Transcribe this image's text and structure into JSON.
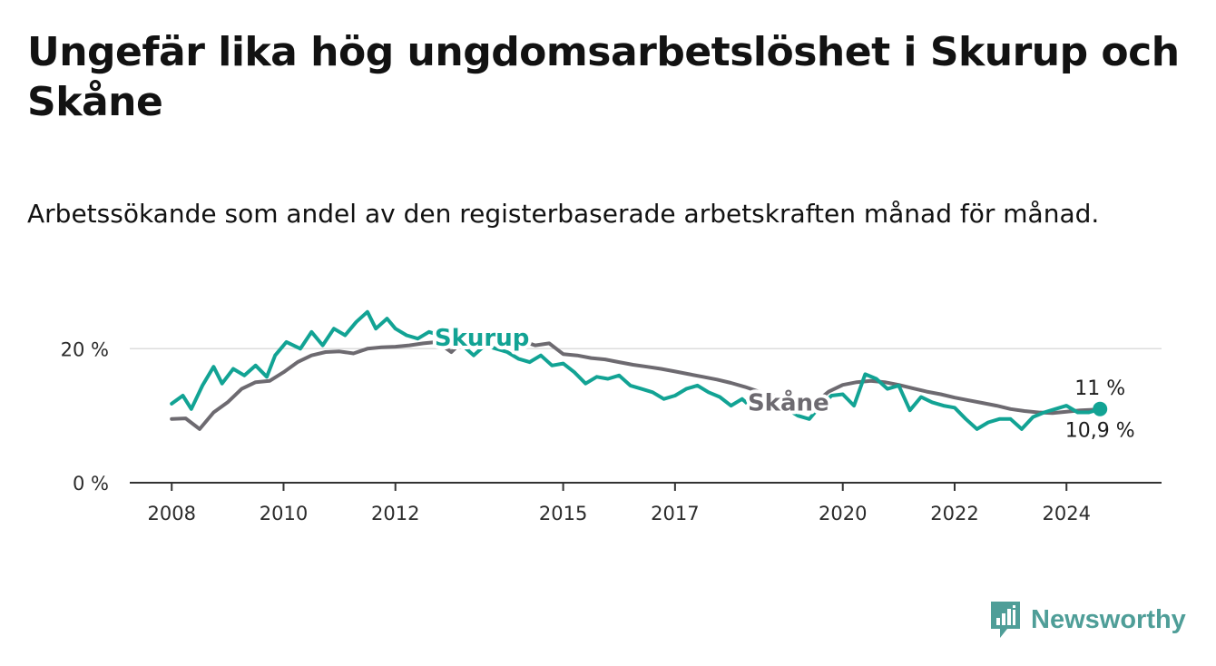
{
  "title": "Ungefär lika hög ungdomsarbetslöshet i Skurup och Skåne",
  "subtitle": "Arbetssökande som andel av den registerbaserade arbetskraften månad för månad.",
  "brand": {
    "name": "Newsworthy",
    "icon": "newsworthy-logo-icon",
    "color": "#4f9e98"
  },
  "chart_data": {
    "type": "line",
    "title": "Ungefär lika hög ungdomsarbetslöshet i Skurup och Skåne",
    "xlabel": "",
    "ylabel": "",
    "xlim": [
      2007.25,
      2025.7
    ],
    "ylim": [
      0,
      26
    ],
    "y_ticks": [
      {
        "value": 0,
        "label": "0 %"
      },
      {
        "value": 20,
        "label": "20 %"
      }
    ],
    "x_ticks": [
      {
        "value": 2008,
        "label": "2008"
      },
      {
        "value": 2010,
        "label": "2010"
      },
      {
        "value": 2012,
        "label": "2012"
      },
      {
        "value": 2015,
        "label": "2015"
      },
      {
        "value": 2017,
        "label": "2017"
      },
      {
        "value": 2020,
        "label": "2020"
      },
      {
        "value": 2022,
        "label": "2022"
      },
      {
        "value": 2024,
        "label": "2024"
      }
    ],
    "grid": "horizontal",
    "series": [
      {
        "name": "Skåne",
        "color": "#6d6a70",
        "label_at": [
          2018.3,
          12.0
        ],
        "end_label": "10,9 %",
        "points": [
          [
            2008.0,
            9.5
          ],
          [
            2008.25,
            9.6
          ],
          [
            2008.5,
            8.0
          ],
          [
            2008.75,
            10.5
          ],
          [
            2009.0,
            12.0
          ],
          [
            2009.25,
            14.0
          ],
          [
            2009.5,
            15.0
          ],
          [
            2009.75,
            15.2
          ],
          [
            2010.0,
            16.5
          ],
          [
            2010.25,
            18.0
          ],
          [
            2010.5,
            19.0
          ],
          [
            2010.75,
            19.5
          ],
          [
            2011.0,
            19.6
          ],
          [
            2011.25,
            19.3
          ],
          [
            2011.5,
            20.0
          ],
          [
            2011.75,
            20.2
          ],
          [
            2012.0,
            20.3
          ],
          [
            2012.25,
            20.5
          ],
          [
            2012.5,
            20.8
          ],
          [
            2012.75,
            21.0
          ],
          [
            2013.0,
            19.5
          ],
          [
            2013.25,
            21.5
          ],
          [
            2013.5,
            22.0
          ],
          [
            2013.75,
            21.8
          ],
          [
            2014.0,
            21.5
          ],
          [
            2014.25,
            21.2
          ],
          [
            2014.5,
            20.5
          ],
          [
            2014.75,
            20.8
          ],
          [
            2015.0,
            19.2
          ],
          [
            2015.25,
            19.0
          ],
          [
            2015.5,
            18.6
          ],
          [
            2015.75,
            18.4
          ],
          [
            2016.0,
            18.0
          ],
          [
            2016.25,
            17.6
          ],
          [
            2016.5,
            17.3
          ],
          [
            2016.75,
            17.0
          ],
          [
            2017.0,
            16.6
          ],
          [
            2017.25,
            16.2
          ],
          [
            2017.5,
            15.8
          ],
          [
            2017.75,
            15.4
          ],
          [
            2018.0,
            14.9
          ],
          [
            2018.25,
            14.3
          ],
          [
            2018.5,
            13.6
          ],
          [
            2018.75,
            13.0
          ],
          [
            2019.0,
            12.4
          ],
          [
            2019.25,
            11.9
          ],
          [
            2019.5,
            11.9
          ],
          [
            2019.75,
            13.6
          ],
          [
            2020.0,
            14.6
          ],
          [
            2020.25,
            15.0
          ],
          [
            2020.5,
            15.2
          ],
          [
            2020.75,
            15.0
          ],
          [
            2021.0,
            14.6
          ],
          [
            2021.25,
            14.1
          ],
          [
            2021.5,
            13.6
          ],
          [
            2021.75,
            13.2
          ],
          [
            2022.0,
            12.7
          ],
          [
            2022.25,
            12.3
          ],
          [
            2022.5,
            11.9
          ],
          [
            2022.75,
            11.5
          ],
          [
            2023.0,
            11.0
          ],
          [
            2023.25,
            10.7
          ],
          [
            2023.5,
            10.5
          ],
          [
            2023.75,
            10.4
          ],
          [
            2024.0,
            10.6
          ],
          [
            2024.25,
            10.8
          ],
          [
            2024.5,
            10.9
          ]
        ]
      },
      {
        "name": "Skurup",
        "color": "#12a394",
        "label_at": [
          2012.7,
          21.7
        ],
        "end_label": "11 %",
        "points": [
          [
            2008.0,
            11.8
          ],
          [
            2008.2,
            13.0
          ],
          [
            2008.35,
            11.0
          ],
          [
            2008.55,
            14.5
          ],
          [
            2008.75,
            17.3
          ],
          [
            2008.9,
            14.8
          ],
          [
            2009.1,
            17.0
          ],
          [
            2009.3,
            16.0
          ],
          [
            2009.5,
            17.5
          ],
          [
            2009.7,
            15.8
          ],
          [
            2009.85,
            19.0
          ],
          [
            2010.05,
            21.0
          ],
          [
            2010.3,
            20.0
          ],
          [
            2010.5,
            22.5
          ],
          [
            2010.7,
            20.5
          ],
          [
            2010.9,
            23.0
          ],
          [
            2011.1,
            22.0
          ],
          [
            2011.3,
            24.0
          ],
          [
            2011.5,
            25.5
          ],
          [
            2011.65,
            23.0
          ],
          [
            2011.85,
            24.5
          ],
          [
            2012.0,
            23.0
          ],
          [
            2012.2,
            22.0
          ],
          [
            2012.4,
            21.5
          ],
          [
            2012.6,
            22.5
          ],
          [
            2012.8,
            22.0
          ],
          [
            2013.0,
            21.0
          ],
          [
            2013.2,
            20.5
          ],
          [
            2013.4,
            19.0
          ],
          [
            2013.6,
            20.5
          ],
          [
            2013.8,
            20.0
          ],
          [
            2014.0,
            19.5
          ],
          [
            2014.2,
            18.5
          ],
          [
            2014.4,
            18.0
          ],
          [
            2014.6,
            19.0
          ],
          [
            2014.8,
            17.5
          ],
          [
            2015.0,
            17.8
          ],
          [
            2015.2,
            16.5
          ],
          [
            2015.4,
            14.8
          ],
          [
            2015.6,
            15.8
          ],
          [
            2015.8,
            15.5
          ],
          [
            2016.0,
            16.0
          ],
          [
            2016.2,
            14.5
          ],
          [
            2016.4,
            14.0
          ],
          [
            2016.6,
            13.5
          ],
          [
            2016.8,
            12.5
          ],
          [
            2017.0,
            13.0
          ],
          [
            2017.2,
            14.0
          ],
          [
            2017.4,
            14.5
          ],
          [
            2017.6,
            13.5
          ],
          [
            2017.8,
            12.8
          ],
          [
            2018.0,
            11.5
          ],
          [
            2018.2,
            12.5
          ],
          [
            2018.4,
            11.0
          ],
          [
            2018.6,
            12.0
          ],
          [
            2018.8,
            11.5
          ],
          [
            2019.0,
            11.0
          ],
          [
            2019.2,
            10.0
          ],
          [
            2019.4,
            9.5
          ],
          [
            2019.6,
            11.5
          ],
          [
            2019.8,
            13.0
          ],
          [
            2020.0,
            13.2
          ],
          [
            2020.2,
            11.5
          ],
          [
            2020.4,
            16.2
          ],
          [
            2020.6,
            15.5
          ],
          [
            2020.8,
            14.0
          ],
          [
            2021.0,
            14.5
          ],
          [
            2021.2,
            10.8
          ],
          [
            2021.4,
            12.8
          ],
          [
            2021.6,
            12.0
          ],
          [
            2021.8,
            11.5
          ],
          [
            2022.0,
            11.2
          ],
          [
            2022.2,
            9.5
          ],
          [
            2022.4,
            8.0
          ],
          [
            2022.6,
            9.0
          ],
          [
            2022.8,
            9.5
          ],
          [
            2023.0,
            9.5
          ],
          [
            2023.2,
            8.0
          ],
          [
            2023.4,
            9.8
          ],
          [
            2023.6,
            10.5
          ],
          [
            2023.8,
            11.0
          ],
          [
            2024.0,
            11.5
          ],
          [
            2024.2,
            10.5
          ],
          [
            2024.4,
            10.5
          ],
          [
            2024.6,
            11.0
          ]
        ]
      }
    ]
  }
}
